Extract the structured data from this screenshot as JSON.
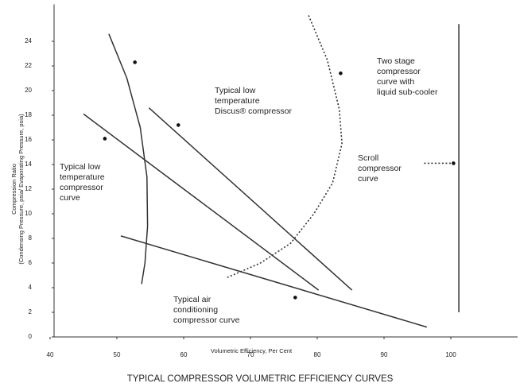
{
  "chart_data": {
    "type": "line",
    "title": "TYPICAL COMPRESSOR VOLUMETRIC EFFICIENCY CURVES",
    "x_label": "Volumetric Efficiency, Per Cent",
    "y_label": [
      "Compression Ratio",
      "(Condensing Pressure, psia/ Evaporating Pressure, psia)"
    ],
    "xlim": [
      40,
      110
    ],
    "ylim": [
      0,
      27
    ],
    "xticks": [
      40,
      50,
      60,
      70,
      80,
      90,
      100
    ],
    "yticks": [
      0,
      2,
      4,
      6,
      8,
      10,
      12,
      14,
      16,
      18,
      20,
      22,
      24
    ],
    "color": "#333333",
    "series": [
      {
        "style": "solid",
        "x": [
          48.8,
          51.5,
          53.5,
          54.5,
          54.6,
          54.2,
          53.7
        ],
        "values": [
          24.6,
          21,
          17,
          13,
          9,
          6,
          4.3
        ]
      },
      {
        "style": "solid",
        "x": [
          45,
          80.2
        ],
        "values": [
          18.1,
          3.8
        ]
      },
      {
        "style": "solid",
        "x": [
          54.8,
          85.2
        ],
        "values": [
          18.6,
          3.8
        ]
      },
      {
        "style": "solid",
        "x": [
          50.6,
          96.4
        ],
        "values": [
          8.2,
          0.8
        ]
      },
      {
        "style": "dotted",
        "x": [
          78.7,
          81.5,
          83.3,
          83.7,
          82.3,
          79.5,
          76,
          71.5,
          66.4
        ],
        "values": [
          26.1,
          22.5,
          18.5,
          15.7,
          12.5,
          10,
          7.6,
          6,
          4.8
        ]
      },
      {
        "style": "solid",
        "x": [
          101.2,
          101.2
        ],
        "values": [
          25.4,
          2.0
        ]
      },
      {
        "style": "dotted",
        "x": [
          96,
          100.4
        ],
        "values": [
          14.1,
          14.1
        ]
      }
    ],
    "markers": {
      "x": [
        52.7,
        59.2,
        48.2,
        83.5,
        100.4,
        76.7
      ],
      "values": [
        22.3,
        17.2,
        16.1,
        21.4,
        14.1,
        3.2
      ]
    },
    "annotations": [
      {
        "lines": [
          "Typical low",
          "temperature",
          "Discus® compressor"
        ]
      },
      {
        "lines": [
          "Typical low",
          "temperature",
          "compressor",
          "curve"
        ]
      },
      {
        "lines": [
          "Two stage",
          "compressor",
          "curve with",
          "liquid sub-cooler"
        ]
      },
      {
        "lines": [
          "Scroll",
          "compressor",
          "curve"
        ]
      },
      {
        "lines": [
          "Typical air",
          "conditioning",
          "compressor curve"
        ]
      }
    ]
  }
}
